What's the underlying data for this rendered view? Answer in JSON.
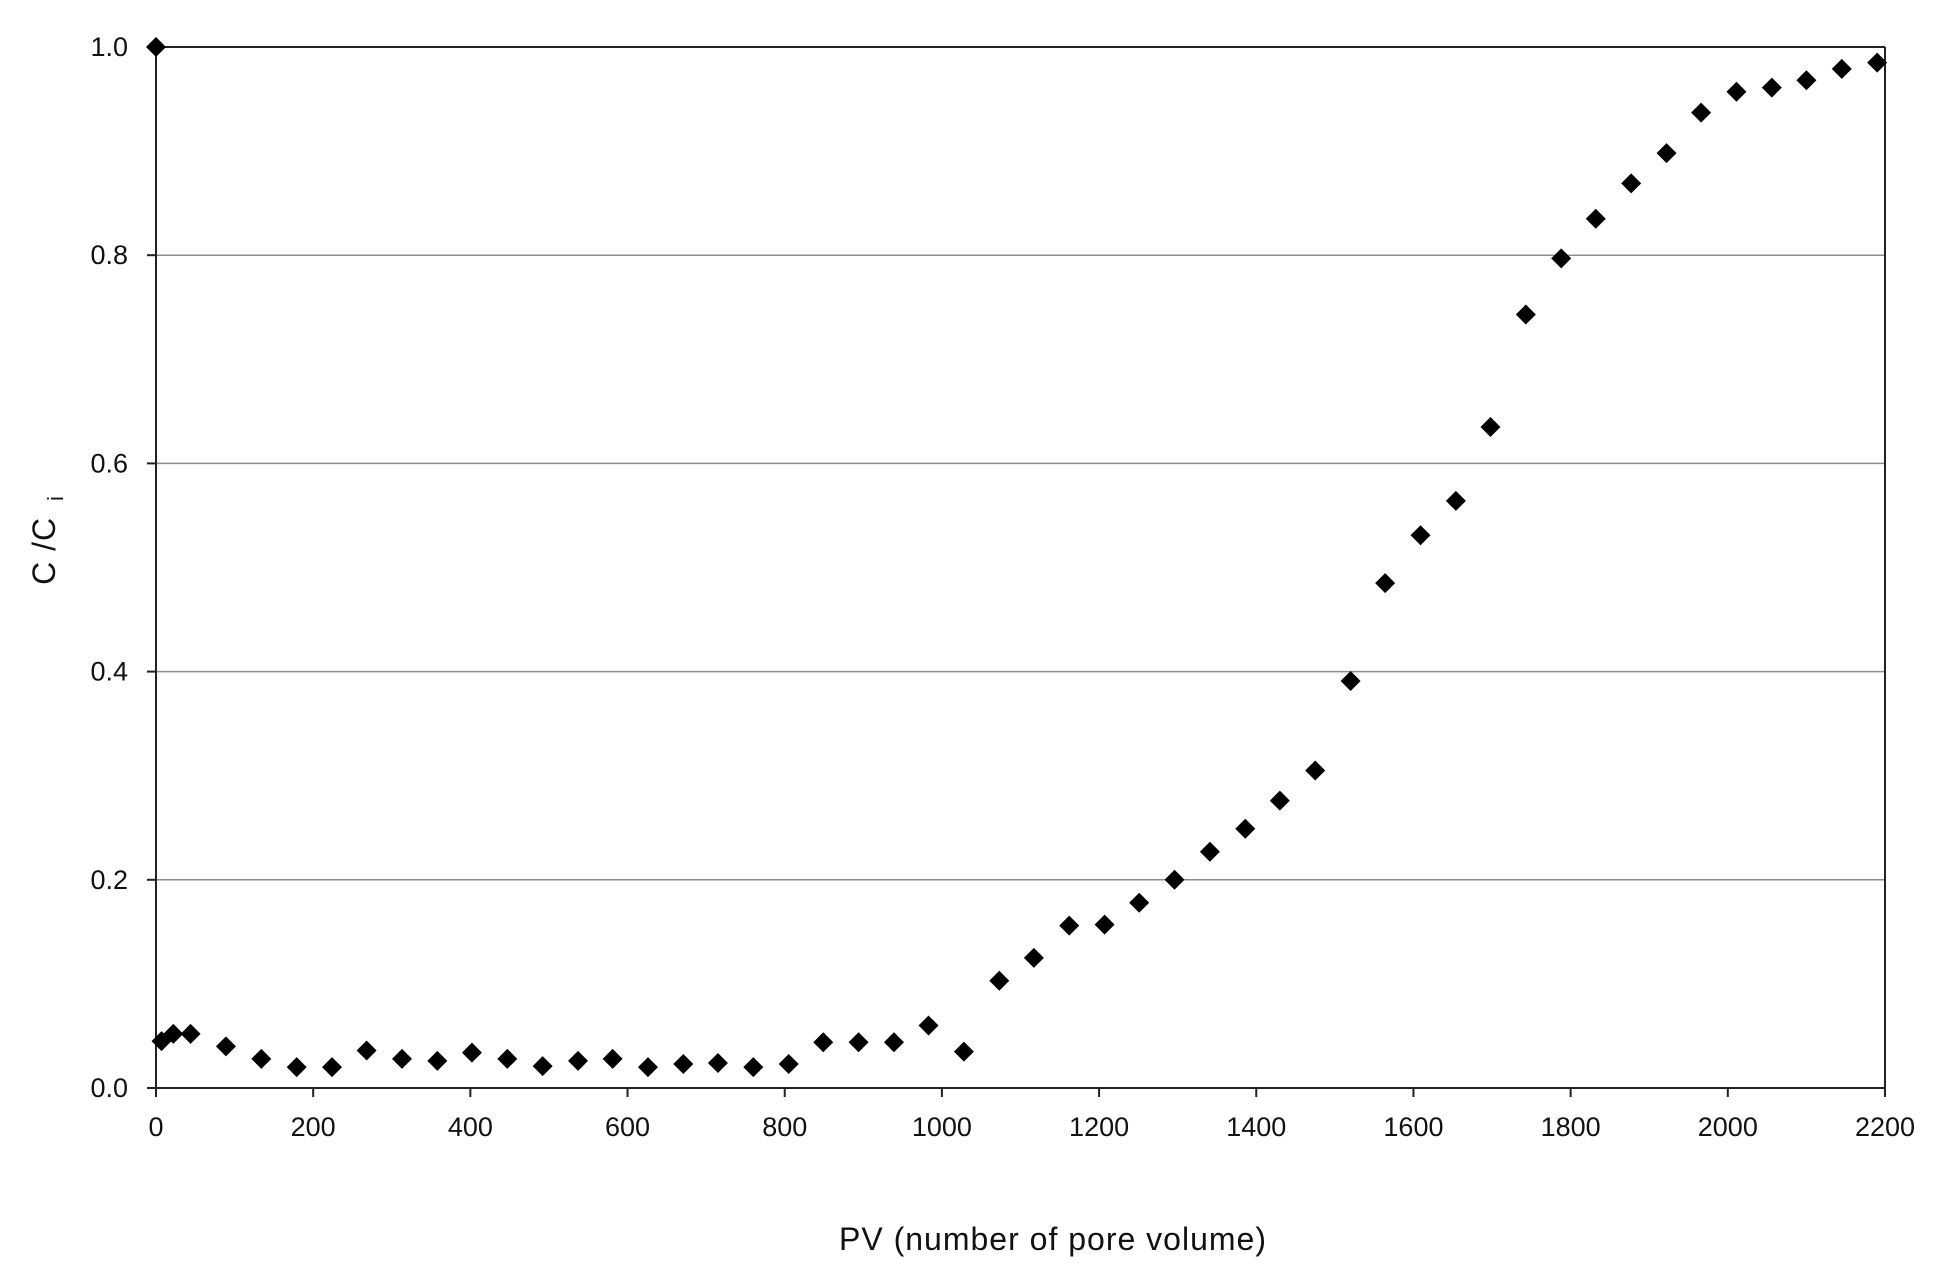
{
  "chart_data": {
    "type": "scatter",
    "title": "",
    "xlabel": "PV (number of pore volume)",
    "ylabel": {
      "main": "C /C",
      "sub": "i"
    },
    "xlim": [
      0,
      2200
    ],
    "ylim": [
      0,
      1.0
    ],
    "xticks": [
      0,
      200,
      400,
      600,
      800,
      1000,
      1200,
      1400,
      1600,
      1800,
      2000,
      2200
    ],
    "yticks": [
      0.0,
      0.2,
      0.4,
      0.6,
      0.8,
      1.0
    ],
    "ytick_labels": [
      "0.0",
      "0.2",
      "0.4",
      "0.6",
      "0.8",
      "1.0"
    ],
    "grid": "horizontal",
    "legend": "none",
    "marker": "diamond",
    "marker_color": "#000000",
    "series": [
      {
        "points": [
          [
            0,
            1.0
          ],
          [
            7,
            0.045
          ],
          [
            22,
            0.052
          ],
          [
            44,
            0.052
          ],
          [
            89,
            0.04
          ],
          [
            134,
            0.028
          ],
          [
            179,
            0.02
          ],
          [
            224,
            0.02
          ],
          [
            268,
            0.036
          ],
          [
            313,
            0.028
          ],
          [
            358,
            0.026
          ],
          [
            402,
            0.034
          ],
          [
            447,
            0.028
          ],
          [
            492,
            0.021
          ],
          [
            537,
            0.026
          ],
          [
            581,
            0.028
          ],
          [
            626,
            0.02
          ],
          [
            671,
            0.023
          ],
          [
            715,
            0.024
          ],
          [
            760,
            0.02
          ],
          [
            805,
            0.023
          ],
          [
            849,
            0.044
          ],
          [
            894,
            0.044
          ],
          [
            939,
            0.044
          ],
          [
            983,
            0.06
          ],
          [
            1028,
            0.035
          ],
          [
            1073,
            0.103
          ],
          [
            1117,
            0.125
          ],
          [
            1162,
            0.156
          ],
          [
            1207,
            0.157
          ],
          [
            1251,
            0.178
          ],
          [
            1296,
            0.2
          ],
          [
            1341,
            0.227
          ],
          [
            1386,
            0.249
          ],
          [
            1430,
            0.276
          ],
          [
            1475,
            0.305
          ],
          [
            1520,
            0.391
          ],
          [
            1564,
            0.485
          ],
          [
            1609,
            0.531
          ],
          [
            1654,
            0.564
          ],
          [
            1698,
            0.635
          ],
          [
            1743,
            0.743
          ],
          [
            1788,
            0.797
          ],
          [
            1832,
            0.835
          ],
          [
            1877,
            0.869
          ],
          [
            1922,
            0.898
          ],
          [
            1966,
            0.937
          ],
          [
            2011,
            0.957
          ],
          [
            2056,
            0.961
          ],
          [
            2100,
            0.968
          ],
          [
            2145,
            0.979
          ],
          [
            2190,
            0.985
          ]
        ]
      }
    ]
  }
}
